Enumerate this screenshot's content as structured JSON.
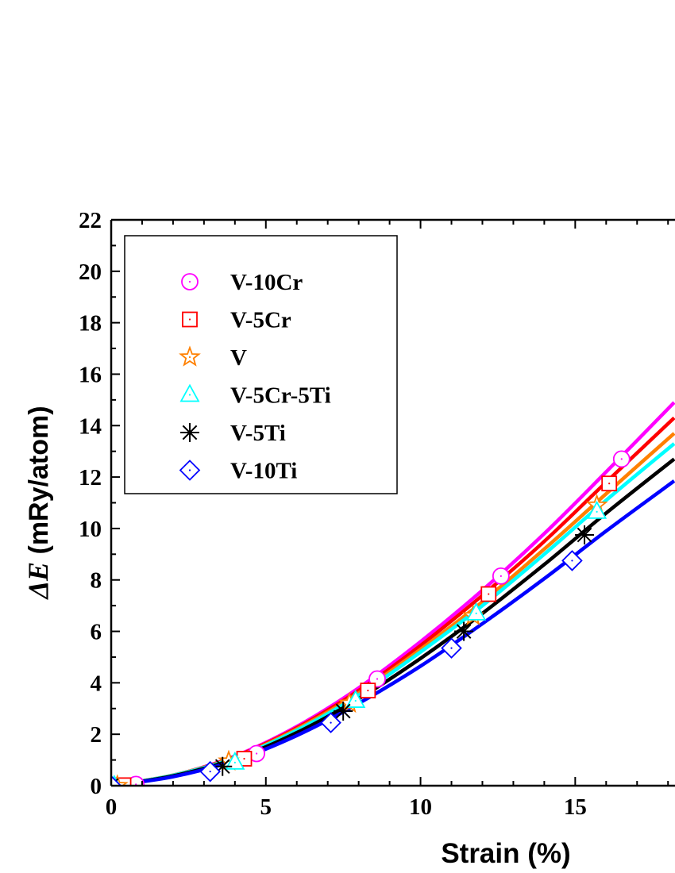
{
  "chart_data": {
    "type": "line",
    "title": "",
    "xlabel": "Strain (%)",
    "ylabel_prefix": "ΔE",
    "ylabel_suffix": " (mRy/atom)",
    "xlim": [
      0,
      18.2
    ],
    "ylim": [
      0,
      22
    ],
    "x_ticks": [
      0,
      5,
      10,
      15
    ],
    "y_ticks": [
      0,
      2,
      4,
      6,
      8,
      10,
      12,
      14,
      16,
      18,
      20,
      22
    ],
    "grid": false,
    "legend_position": "top-left",
    "series": [
      {
        "name": "V-10Cr",
        "color": "#ff00ff",
        "marker": "circle",
        "markers": [
          [
            0.8,
            0.05
          ],
          [
            4.7,
            1.25
          ],
          [
            8.6,
            4.15
          ],
          [
            12.6,
            8.15
          ],
          [
            16.5,
            12.7
          ]
        ],
        "curve": [
          [
            0,
            0
          ],
          [
            2,
            0.4
          ],
          [
            4,
            1.15
          ],
          [
            6,
            2.3
          ],
          [
            8,
            3.8
          ],
          [
            10,
            5.6
          ],
          [
            12,
            7.6
          ],
          [
            14,
            9.8
          ],
          [
            16,
            12.2
          ],
          [
            18.2,
            14.9
          ]
        ]
      },
      {
        "name": "V-5Cr",
        "color": "#ff0000",
        "marker": "square",
        "markers": [
          [
            0.4,
            0.02
          ],
          [
            4.3,
            1.05
          ],
          [
            8.3,
            3.7
          ],
          [
            12.2,
            7.45
          ],
          [
            16.1,
            11.75
          ]
        ],
        "curve": [
          [
            0,
            0
          ],
          [
            2,
            0.4
          ],
          [
            4,
            1.13
          ],
          [
            6,
            2.25
          ],
          [
            8,
            3.7
          ],
          [
            10,
            5.45
          ],
          [
            12,
            7.4
          ],
          [
            14,
            9.5
          ],
          [
            16,
            11.8
          ],
          [
            18.2,
            14.3
          ]
        ]
      },
      {
        "name": "V",
        "color": "#ff8000",
        "marker": "star",
        "markers": [
          [
            0.2,
            0.0
          ],
          [
            3.8,
            0.95
          ],
          [
            7.7,
            3.2
          ],
          [
            11.7,
            6.6
          ],
          [
            15.7,
            10.9
          ]
        ],
        "curve": [
          [
            0,
            0
          ],
          [
            2,
            0.41
          ],
          [
            4,
            1.1
          ],
          [
            6,
            2.2
          ],
          [
            8,
            3.6
          ],
          [
            10,
            5.3
          ],
          [
            12,
            7.15
          ],
          [
            14,
            9.2
          ],
          [
            16,
            11.35
          ],
          [
            18.2,
            13.7
          ]
        ]
      },
      {
        "name": "V-5Cr-5Ti",
        "color": "#00ffff",
        "marker": "triangle",
        "markers": [
          [
            0.1,
            0.0
          ],
          [
            4.0,
            0.9
          ],
          [
            7.9,
            3.3
          ],
          [
            11.8,
            6.7
          ],
          [
            15.7,
            10.65
          ]
        ],
        "curve": [
          [
            0,
            0
          ],
          [
            2,
            0.4
          ],
          [
            4,
            1.08
          ],
          [
            6,
            2.15
          ],
          [
            8,
            3.52
          ],
          [
            10,
            5.2
          ],
          [
            12,
            7.0
          ],
          [
            14,
            9.0
          ],
          [
            16,
            11.1
          ],
          [
            18.2,
            13.3
          ]
        ]
      },
      {
        "name": "V-5Ti",
        "color": "#000000",
        "marker": "asterisk",
        "markers": [
          [
            0.0,
            0.0
          ],
          [
            3.6,
            0.75
          ],
          [
            7.5,
            2.9
          ],
          [
            11.4,
            6.0
          ],
          [
            15.3,
            9.75
          ]
        ],
        "curve": [
          [
            0,
            0
          ],
          [
            2,
            0.38
          ],
          [
            4,
            1.04
          ],
          [
            6,
            2.06
          ],
          [
            8,
            3.38
          ],
          [
            10,
            4.95
          ],
          [
            12,
            6.7
          ],
          [
            14,
            8.6
          ],
          [
            16,
            10.6
          ],
          [
            18.2,
            12.7
          ]
        ]
      },
      {
        "name": "V-10Ti",
        "color": "#0000ff",
        "marker": "diamond",
        "markers": [
          [
            0.0,
            0.0
          ],
          [
            3.2,
            0.55
          ],
          [
            7.1,
            2.45
          ],
          [
            11.0,
            5.35
          ],
          [
            14.9,
            8.75
          ]
        ],
        "curve": [
          [
            0,
            0
          ],
          [
            2,
            0.35
          ],
          [
            4,
            0.98
          ],
          [
            6,
            1.95
          ],
          [
            8,
            3.2
          ],
          [
            10,
            4.65
          ],
          [
            12,
            6.3
          ],
          [
            14,
            8.05
          ],
          [
            16,
            9.9
          ],
          [
            18.2,
            11.85
          ]
        ]
      }
    ]
  }
}
